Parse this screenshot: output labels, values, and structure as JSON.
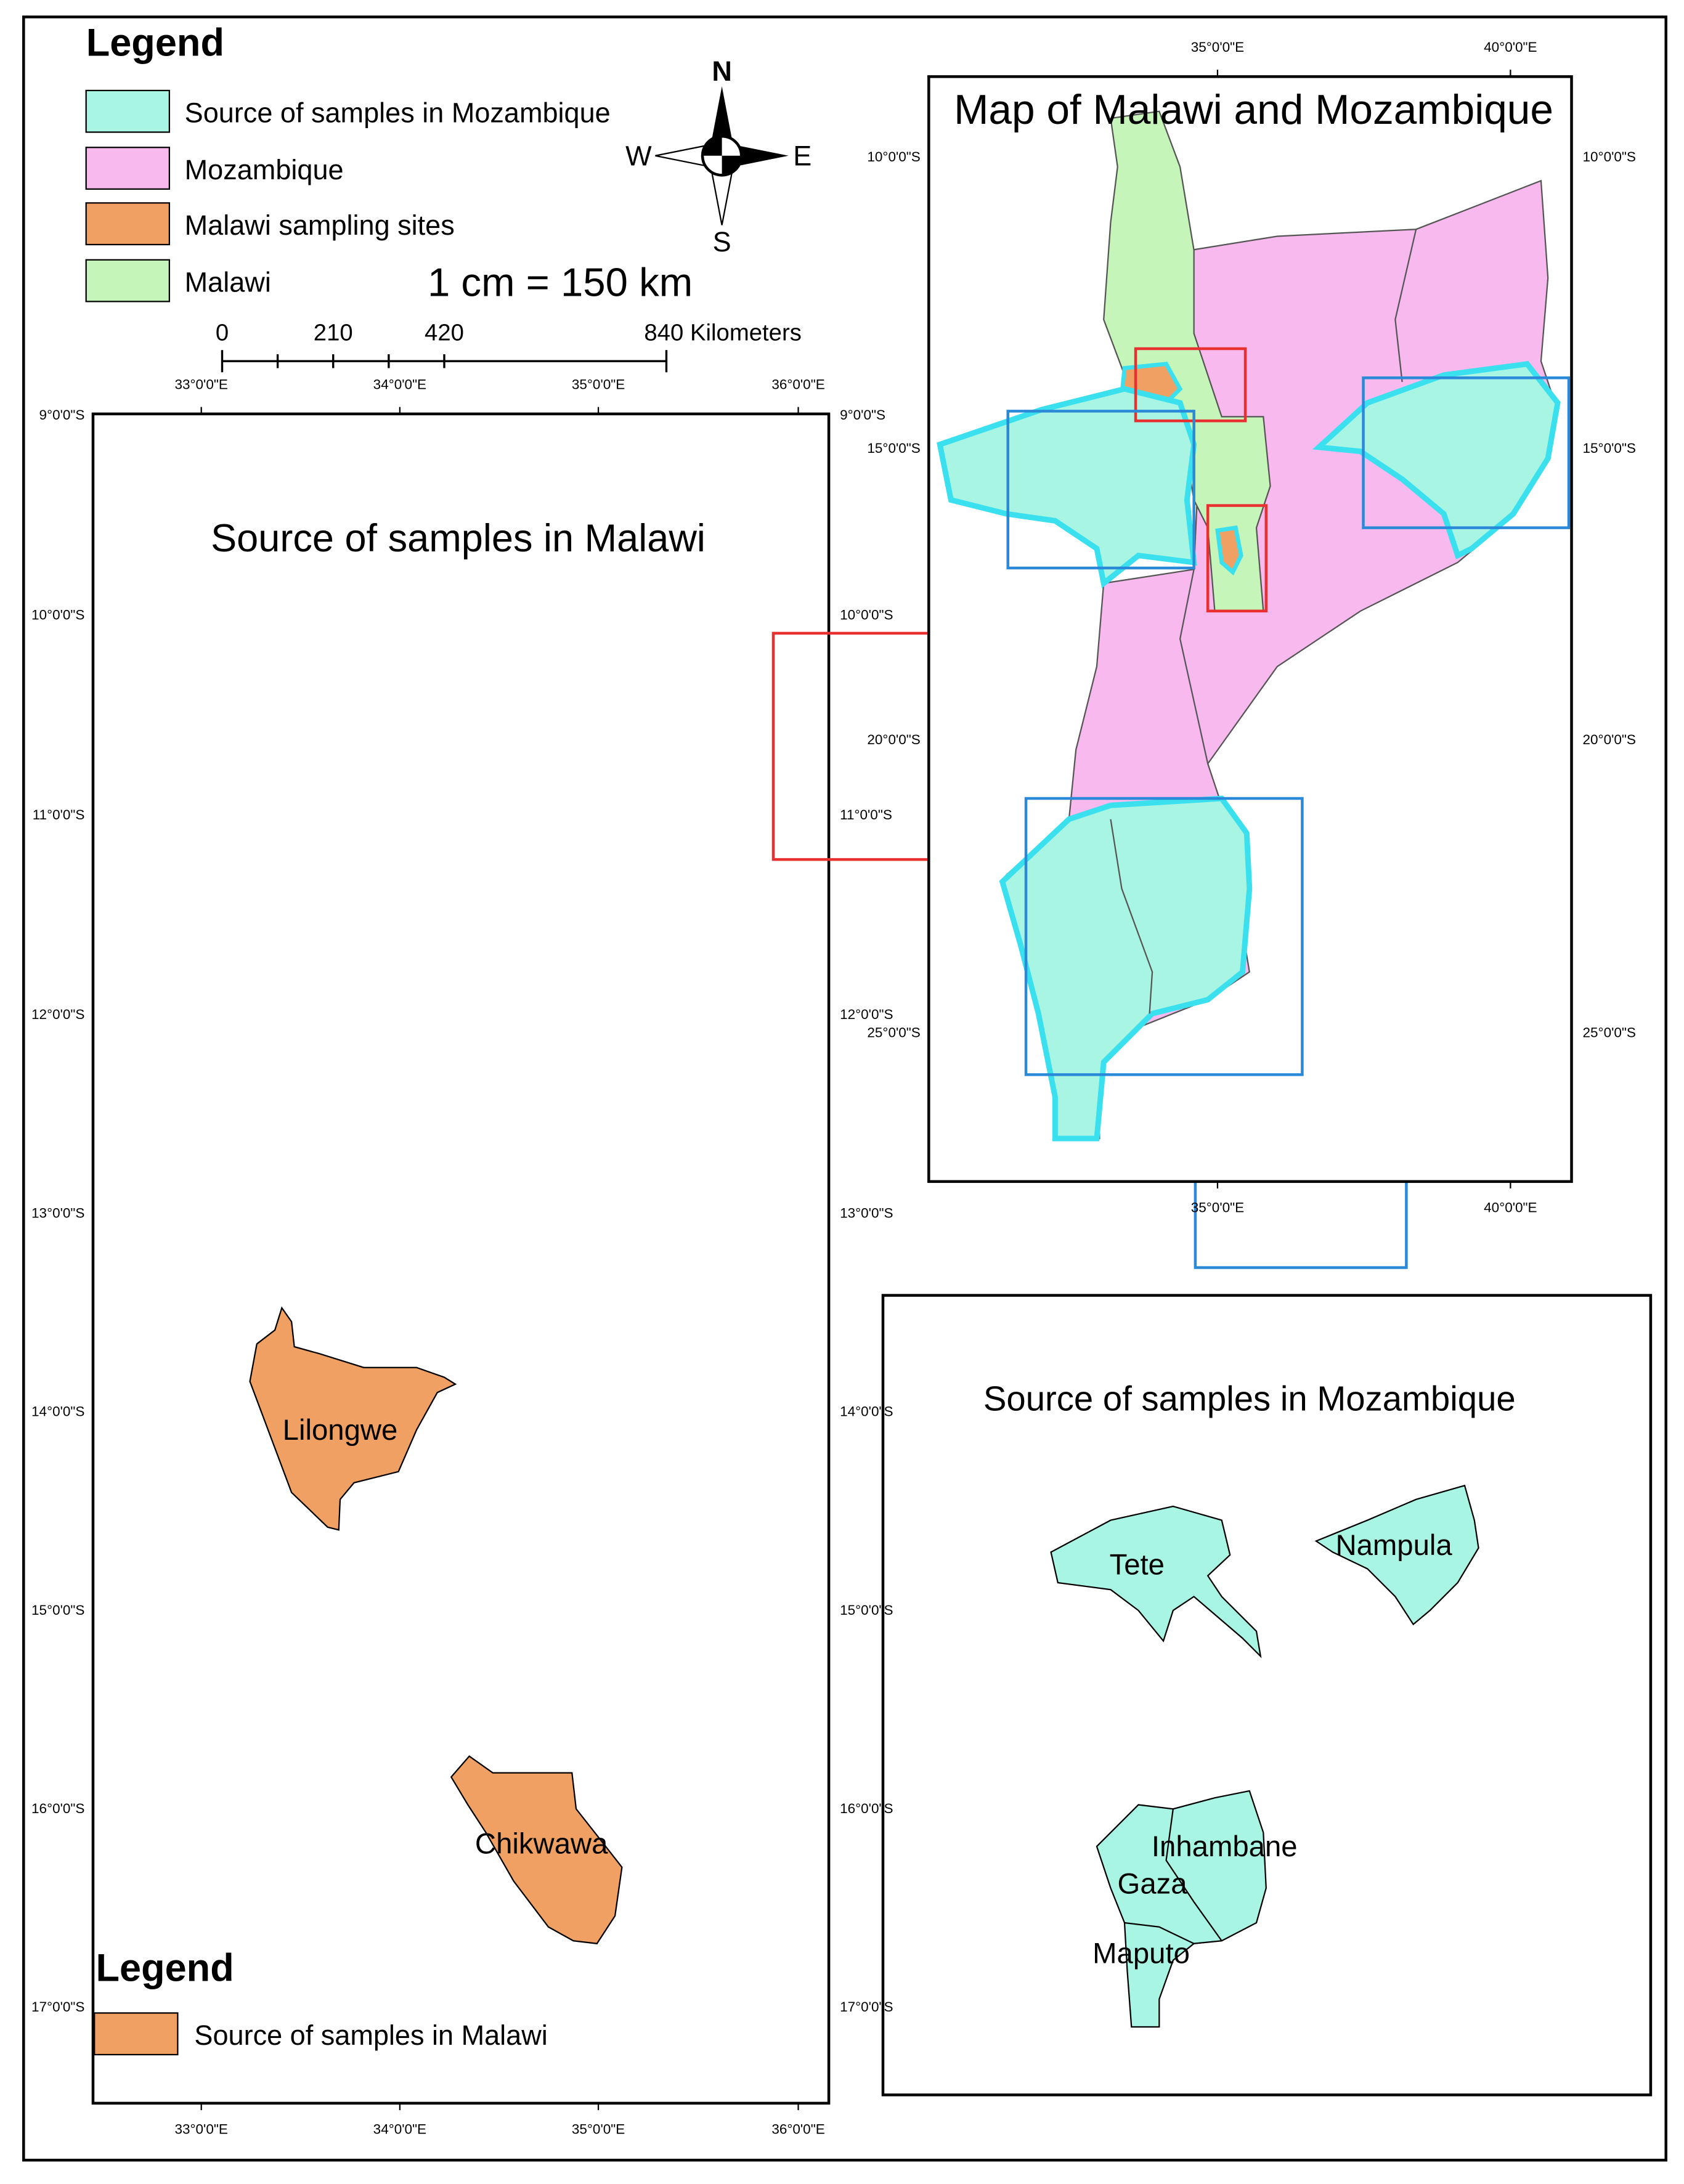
{
  "legend": {
    "title": "Legend",
    "items": [
      "Source of samples in Mozambique",
      "Mozambique",
      "Malawi sampling sites",
      "Malawi"
    ]
  },
  "compass": {
    "n": "N",
    "s": "S",
    "w": "W",
    "e": "E"
  },
  "scale": {
    "text": "1 cm = 150 km",
    "labels": [
      "0",
      "210",
      "420",
      "840 Kilometers"
    ]
  },
  "main_map": {
    "title": "Map of Malawi and Mozambique",
    "x_ticks": [
      "35°0'0\"E",
      "40°0'0\"E"
    ],
    "y_ticks": [
      "10°0'0\"S",
      "15°0'0\"S",
      "20°0'0\"S",
      "25°0'0\"S"
    ]
  },
  "malawi_map": {
    "title": "Source of samples in Malawi",
    "x_ticks": [
      "33°0'0\"E",
      "34°0'0\"E",
      "35°0'0\"E",
      "36°0'0\"E"
    ],
    "y_ticks": [
      "9°0'0\"S",
      "10°0'0\"S",
      "11°0'0\"S",
      "12°0'0\"S",
      "13°0'0\"S",
      "14°0'0\"S",
      "15°0'0\"S",
      "16°0'0\"S",
      "17°0'0\"S"
    ],
    "places": [
      "Lilongwe",
      "Chikwawa"
    ],
    "legend": {
      "title": "Legend",
      "item": "Source of samples in Malawi"
    }
  },
  "mozambique_map": {
    "title": "Source of samples in Mozambique",
    "places": [
      "Tete",
      "Nampula",
      "Inhambane",
      "Gaza",
      "Maputo"
    ]
  }
}
